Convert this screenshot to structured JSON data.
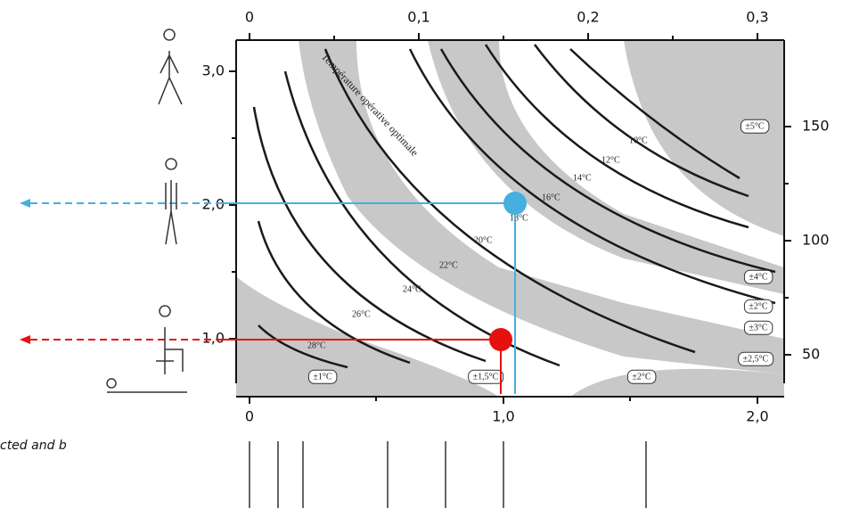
{
  "top_axis": {
    "ticks": [
      "0",
      "0,1",
      "0,2",
      "0,3"
    ]
  },
  "left_axis": {
    "ticks": [
      "3,0",
      "2,0",
      "1,0"
    ]
  },
  "right_axis": {
    "ticks": [
      "150",
      "100",
      "50"
    ]
  },
  "bottom_axis": {
    "ticks": [
      "0",
      "1,0",
      "2,0"
    ]
  },
  "curves": [
    {
      "label": "28°C"
    },
    {
      "label": "26°C"
    },
    {
      "label": "24°C"
    },
    {
      "label": "22°C"
    },
    {
      "label": "20°C"
    },
    {
      "label": "18°C"
    },
    {
      "label": "16°C"
    },
    {
      "label": "14°C"
    },
    {
      "label": "12°C"
    },
    {
      "label": "10°C"
    }
  ],
  "tolerances": [
    "±1°C",
    "±1,5°C",
    "±2°C",
    "±5°C",
    "±4°C",
    "±2°C",
    "±3°C",
    "±2,5°C"
  ],
  "annotation": "Température opérative optimale",
  "caption": "cted and b"
}
